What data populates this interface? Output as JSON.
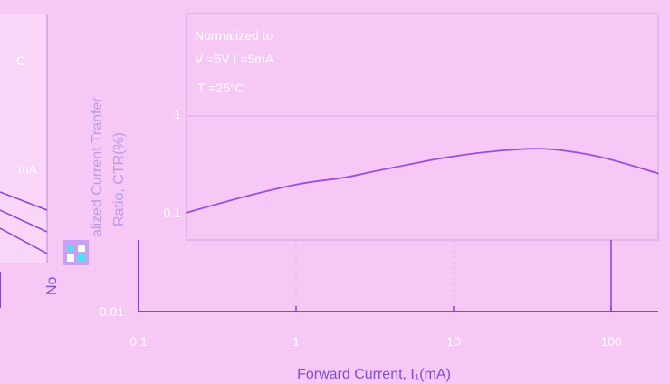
{
  "colors": {
    "background": "#f7c8f5",
    "axis": "#8a3fd6",
    "axis_title": "#7a4fd1",
    "curve": "#9b4de0",
    "tick_text": "#ffffff",
    "inset_fill": "#ffffff"
  },
  "chart_data": {
    "type": "line",
    "x_scale": "log",
    "y_scale": "log",
    "xlim": [
      0.1,
      200
    ],
    "ylim": [
      0.01,
      1
    ],
    "xlabel": "Forward Current, I₁(mA)",
    "ylabel": "Normalized Current Tranfer Ratio, CTR(%)",
    "ylabel_line1": "alized Current Tranfer",
    "ylabel_line2": "Ratio, CTR(%)",
    "ylabel_fragment": "No",
    "x_ticks": [
      0.1,
      1,
      10,
      100
    ],
    "x_tick_labels": [
      "0.1",
      "1",
      "10",
      "100"
    ],
    "y_ticks": [
      0.01,
      0.1,
      1
    ],
    "y_tick_labels": [
      "0.01",
      "0.1",
      "1"
    ],
    "annotation_lines": [
      "Normalized to",
      "V =5V I =5mA",
      "T =25°C"
    ],
    "series": [
      {
        "x": [
          0.2,
          0.3,
          0.5,
          0.8,
          1.2,
          2,
          3,
          5,
          8,
          15,
          25,
          35,
          50,
          80,
          120,
          200
        ],
        "y": [
          0.1,
          0.12,
          0.15,
          0.18,
          0.205,
          0.225,
          0.26,
          0.305,
          0.355,
          0.41,
          0.44,
          0.45,
          0.43,
          0.38,
          0.32,
          0.25
        ]
      }
    ]
  },
  "fragment": {
    "left_text_top": "C",
    "left_text_mid": "mA"
  }
}
